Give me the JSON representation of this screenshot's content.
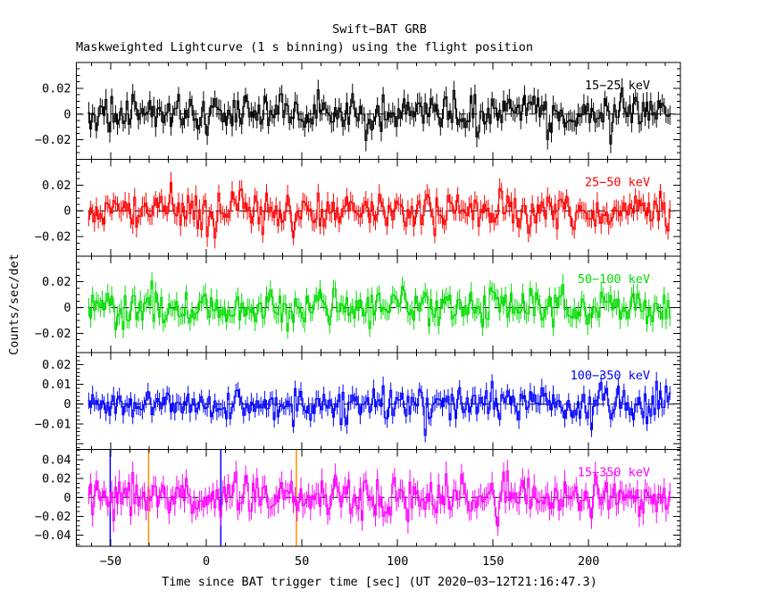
{
  "page": {
    "background": "#ffffff"
  },
  "chart_data": {
    "type": "line",
    "title": "Swift−BAT GRB",
    "subtitle": "Maskweighted Lightcurve (1 s binning) using the flight position",
    "xlabel": "Time since BAT trigger time [sec] (UT 2020−03−12T21:16:47.3)",
    "ylabel": "Counts/sec/det",
    "grid": false,
    "legend_position": "in-panel-right",
    "x_axis": {
      "range": [
        -68,
        248
      ],
      "data_start": -61.5,
      "data_end": 242.5,
      "bin_seconds": 1,
      "major_tick_step": 50,
      "minor_tick_step": 10,
      "major_tick_values": [
        -50,
        0,
        50,
        100,
        150,
        200
      ],
      "major_tick_labels": [
        "−50",
        "0",
        "50",
        "100",
        "150",
        "200"
      ]
    },
    "zero_line": {
      "color": "#000000",
      "style": "dashed"
    },
    "panels": [
      {
        "band": "15−25 keV",
        "color": "#000000",
        "ylim": [
          -0.035,
          0.04
        ],
        "y_major_step": 0.02,
        "y_minor_step": 0.005,
        "ytick_labels": [
          {
            "text": "0.02",
            "value": 0.02
          },
          {
            "text": "0",
            "value": 0
          },
          {
            "text": "−0.02",
            "value": -0.02
          }
        ],
        "noise_sigma": 0.0075,
        "error_bar": 0.007,
        "seed": 7
      },
      {
        "band": "25−50 keV",
        "color": "#ff0000",
        "ylim": [
          -0.035,
          0.04
        ],
        "y_major_step": 0.02,
        "y_minor_step": 0.005,
        "ytick_labels": [
          {
            "text": "0.02",
            "value": 0.02
          },
          {
            "text": "0",
            "value": 0
          },
          {
            "text": "−0.02",
            "value": -0.02
          }
        ],
        "noise_sigma": 0.0075,
        "error_bar": 0.007,
        "seed": 13
      },
      {
        "band": "50−100 keV",
        "color": "#00dd00",
        "ylim": [
          -0.035,
          0.04
        ],
        "y_major_step": 0.02,
        "y_minor_step": 0.005,
        "ytick_labels": [
          {
            "text": "0.02",
            "value": 0.02
          },
          {
            "text": "0",
            "value": 0
          },
          {
            "text": "−0.02",
            "value": -0.02
          }
        ],
        "noise_sigma": 0.0075,
        "error_bar": 0.007,
        "seed": 101
      },
      {
        "band": "100−350 keV",
        "color": "#0000ff",
        "ylim": [
          -0.023,
          0.026
        ],
        "y_major_step": 0.01,
        "y_minor_step": 0.002,
        "ytick_labels": [
          {
            "text": "0.02",
            "value": 0.02
          },
          {
            "text": "0.01",
            "value": 0.01
          },
          {
            "text": "0",
            "value": 0
          },
          {
            "text": "−0.01",
            "value": -0.01
          }
        ],
        "noise_sigma": 0.0042,
        "error_bar": 0.004,
        "seed": 23
      },
      {
        "band": "15−350 keV",
        "color": "#ff00ff",
        "ylim": [
          -0.052,
          0.051
        ],
        "y_major_step": 0.02,
        "y_minor_step": 0.005,
        "ytick_labels": [
          {
            "text": "0.04",
            "value": 0.04
          },
          {
            "text": "0.02",
            "value": 0.02
          },
          {
            "text": "0",
            "value": 0
          },
          {
            "text": "−0.02",
            "value": -0.02
          },
          {
            "text": "−0.04",
            "value": -0.04
          }
        ],
        "noise_sigma": 0.012,
        "error_bar": 0.011,
        "seed": 5,
        "marker_lines": [
          {
            "t": -50.3,
            "color": "#0000ff"
          },
          {
            "t": -30.2,
            "color": "#ff8c00"
          },
          {
            "t": 7.6,
            "color": "#0000ff"
          },
          {
            "t": 47.1,
            "color": "#ff8c00"
          }
        ]
      }
    ]
  }
}
